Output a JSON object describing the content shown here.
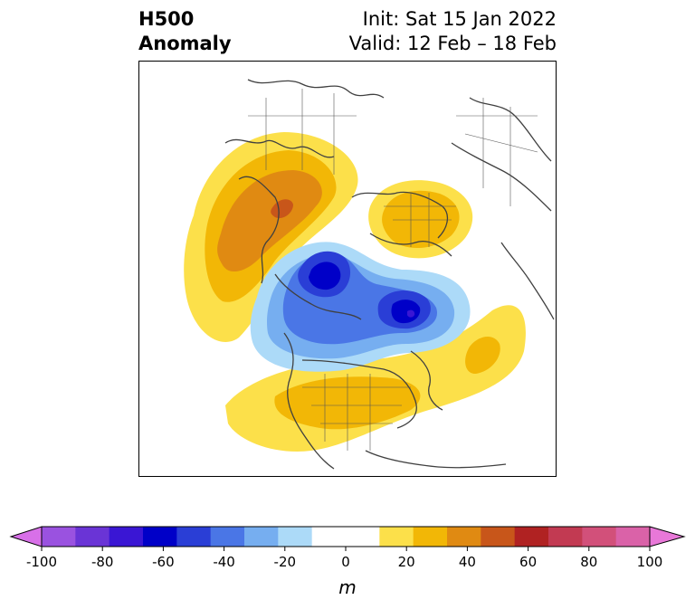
{
  "title": {
    "left_line1": "H500",
    "left_line2": "Anomaly",
    "right_line1": "Init: Sat 15 Jan 2022",
    "right_line2": "Valid: 12 Feb – 18 Feb"
  },
  "colorbar": {
    "ticks": [
      "-100",
      "-80",
      "-60",
      "-40",
      "-20",
      "0",
      "20",
      "40",
      "60",
      "80",
      "100"
    ],
    "unit": "m",
    "colors": [
      "#d870e8",
      "#9a52e0",
      "#6a34d6",
      "#3a16d4",
      "#0000c8",
      "#2a3ed6",
      "#4a76e6",
      "#76aef0",
      "#acdaf8",
      "#ffffff",
      "#ffffff",
      "#fce04a",
      "#f2b706",
      "#e08a12",
      "#c8561a",
      "#b02222",
      "#c23a52",
      "#d2507a",
      "#da62a8",
      "#e878d8"
    ]
  },
  "map": {
    "anomaly_colors": {
      "pos10": "#fce04a",
      "pos20": "#f2b706",
      "pos30": "#e08a12",
      "pos40": "#c8561a",
      "neg10": "#acdaf8",
      "neg20": "#76aef0",
      "neg30": "#4a76e6",
      "neg40": "#2a3ed6",
      "neg50": "#0000c8",
      "neg60": "#3a16d4"
    },
    "coastline_color": "#404040"
  }
}
